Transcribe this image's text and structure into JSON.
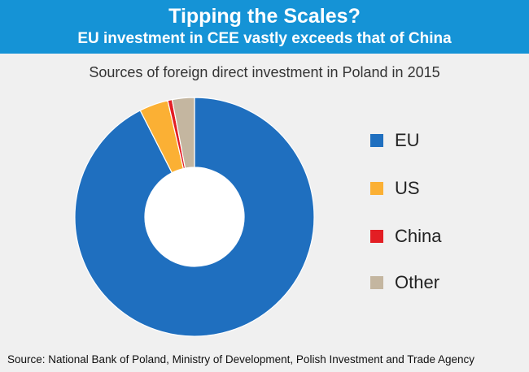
{
  "header": {
    "title": "Tipping the Scales?",
    "subtitle": "EU investment in CEE vastly exceeds that of China"
  },
  "source": "Source:  National Bank of Poland, Ministry of Development, Polish Investment and Trade Agency",
  "chart_data": {
    "type": "pie",
    "title": "Sources of foreign direct investment in Poland in 2015",
    "categories": [
      "EU",
      "US",
      "China",
      "Other"
    ],
    "values": [
      92.5,
      3.9,
      0.6,
      3.0
    ],
    "colors": [
      "#1f6fbf",
      "#fbb034",
      "#e31e24",
      "#c4b6a0"
    ],
    "legend": "right",
    "donut": true
  }
}
